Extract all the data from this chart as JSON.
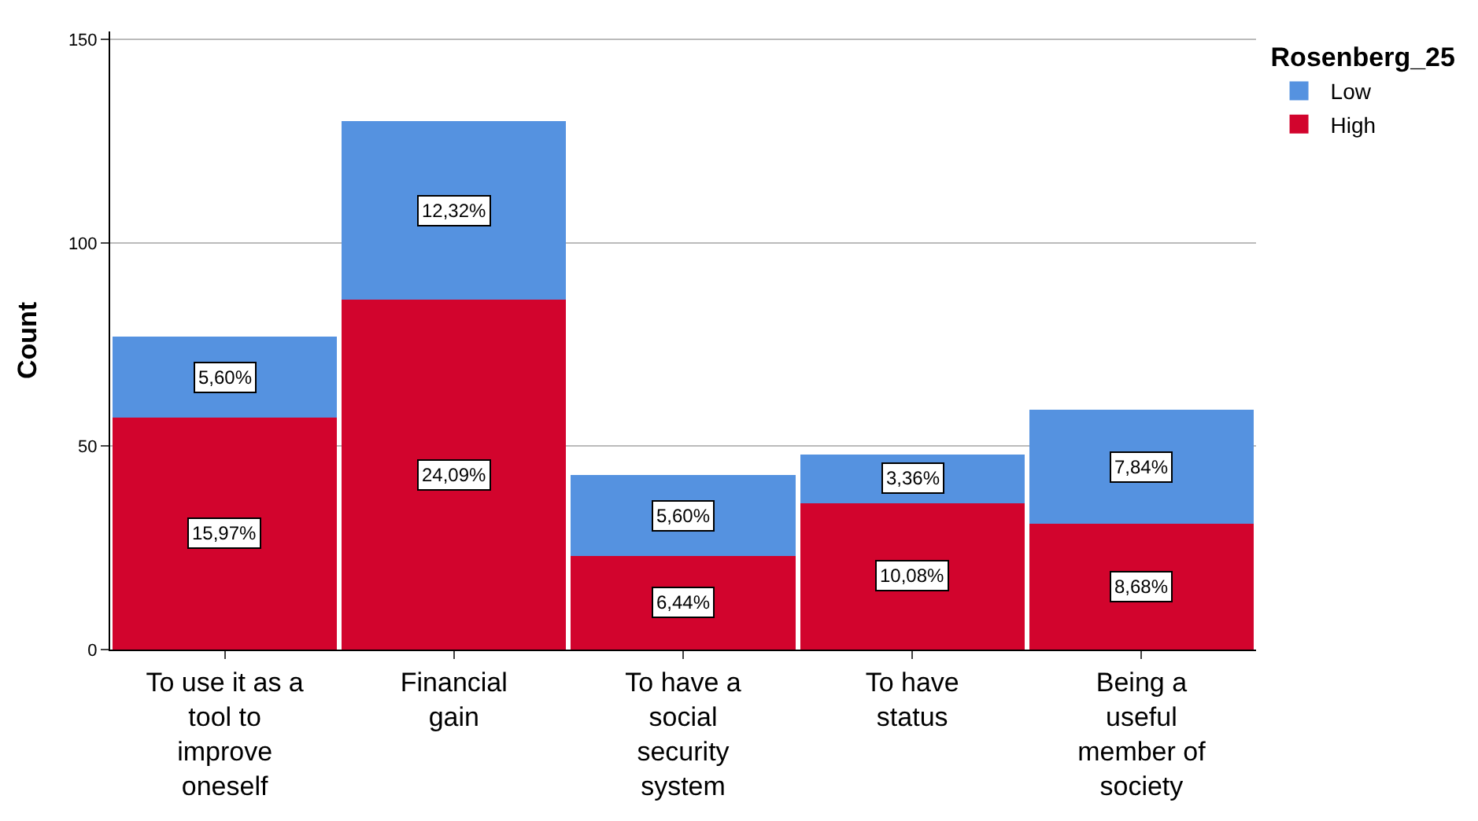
{
  "chart_data": {
    "type": "bar",
    "stacked": true,
    "ylabel": "Count",
    "legend_title": "Rosenberg_25",
    "legend": "top right",
    "grid": "y",
    "categories": [
      "To use it as a\ntool to\nimprove\noneself",
      "Financial\ngain",
      "To have a\nsocial\nsecurity\nsystem",
      "To have\nstatus",
      "Being a\nuseful\nmember of\nsociety"
    ],
    "ylim": [
      0,
      152
    ],
    "yticks": [
      0,
      50,
      100,
      150
    ],
    "series": [
      {
        "name": "High",
        "color": "#d2042d",
        "values": [
          57,
          86,
          23,
          36,
          31
        ]
      },
      {
        "name": "Low",
        "color": "#5592e0",
        "values": [
          20,
          44,
          20,
          12,
          28
        ]
      }
    ],
    "annotations": [
      "15,97%",
      "24,09%",
      "6,44%",
      "10,08%",
      "8,68%",
      "5,60%",
      "12,32%",
      "5,60%",
      "3,36%",
      "7,84%"
    ]
  }
}
